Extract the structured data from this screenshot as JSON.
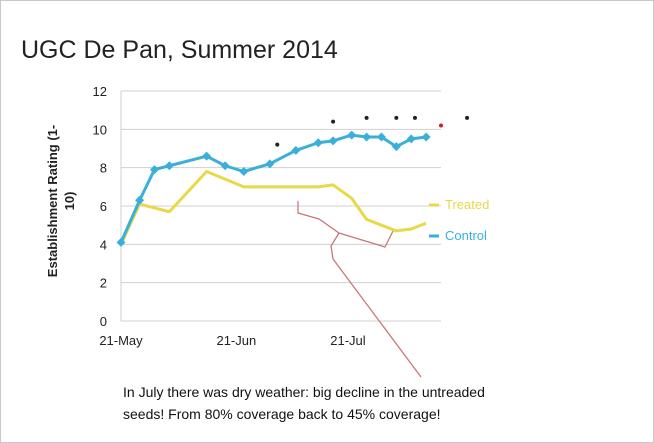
{
  "chart_data": {
    "type": "line",
    "title": "UGC De Pan, Summer 2014",
    "ylabel_lines": [
      "Establishment Rating (1-",
      "10)"
    ],
    "xlabel": "",
    "x_ticks": [
      "21-May",
      "21-Jun",
      "21-Jul"
    ],
    "x_tick_positions": [
      0,
      31,
      61
    ],
    "xlim": [
      0,
      86
    ],
    "ylim": [
      0,
      12
    ],
    "y_ticks": [
      0,
      2,
      4,
      6,
      8,
      10,
      12
    ],
    "grid": "horizontal",
    "legend_position": "right",
    "series": [
      {
        "name": "Treated",
        "color": "#e8d84a",
        "marker": "none",
        "x": [
          0,
          5,
          9,
          13,
          23,
          28,
          33,
          40,
          47,
          53,
          57,
          62,
          66,
          70,
          74,
          78,
          82
        ],
        "y": [
          4.0,
          6.1,
          5.9,
          5.7,
          7.8,
          7.4,
          7.0,
          7.0,
          7.0,
          7.0,
          7.1,
          6.4,
          5.3,
          5.0,
          4.7,
          4.8,
          5.1
        ]
      },
      {
        "name": "Control",
        "color": "#3ab0d8",
        "marker": "diamond",
        "x": [
          0,
          5,
          9,
          13,
          23,
          28,
          33,
          40,
          47,
          53,
          57,
          62,
          66,
          70,
          74,
          78,
          82
        ],
        "y": [
          4.1,
          6.3,
          7.9,
          8.1,
          8.6,
          8.1,
          7.8,
          8.2,
          8.9,
          9.3,
          9.4,
          9.7,
          9.6,
          9.6,
          9.1,
          9.5,
          9.6
        ]
      }
    ],
    "markers_above": [
      {
        "x": 42,
        "y": 9.2,
        "color": "#222222"
      },
      {
        "x": 57,
        "y": 10.4,
        "color": "#222222"
      },
      {
        "x": 66,
        "y": 10.6,
        "color": "#222222"
      },
      {
        "x": 74,
        "y": 10.6,
        "color": "#222222"
      },
      {
        "x": 79,
        "y": 10.6,
        "color": "#222222"
      },
      {
        "x": 86,
        "y": 10.2,
        "color": "#cc2222"
      },
      {
        "x": 93,
        "y": 10.6,
        "color": "#222222"
      }
    ],
    "annotation": {
      "lines": [
        "In July there was dry weather: big decline in the untreaded",
        "seeds! From 80% coverage back to 45% coverage!"
      ]
    }
  }
}
